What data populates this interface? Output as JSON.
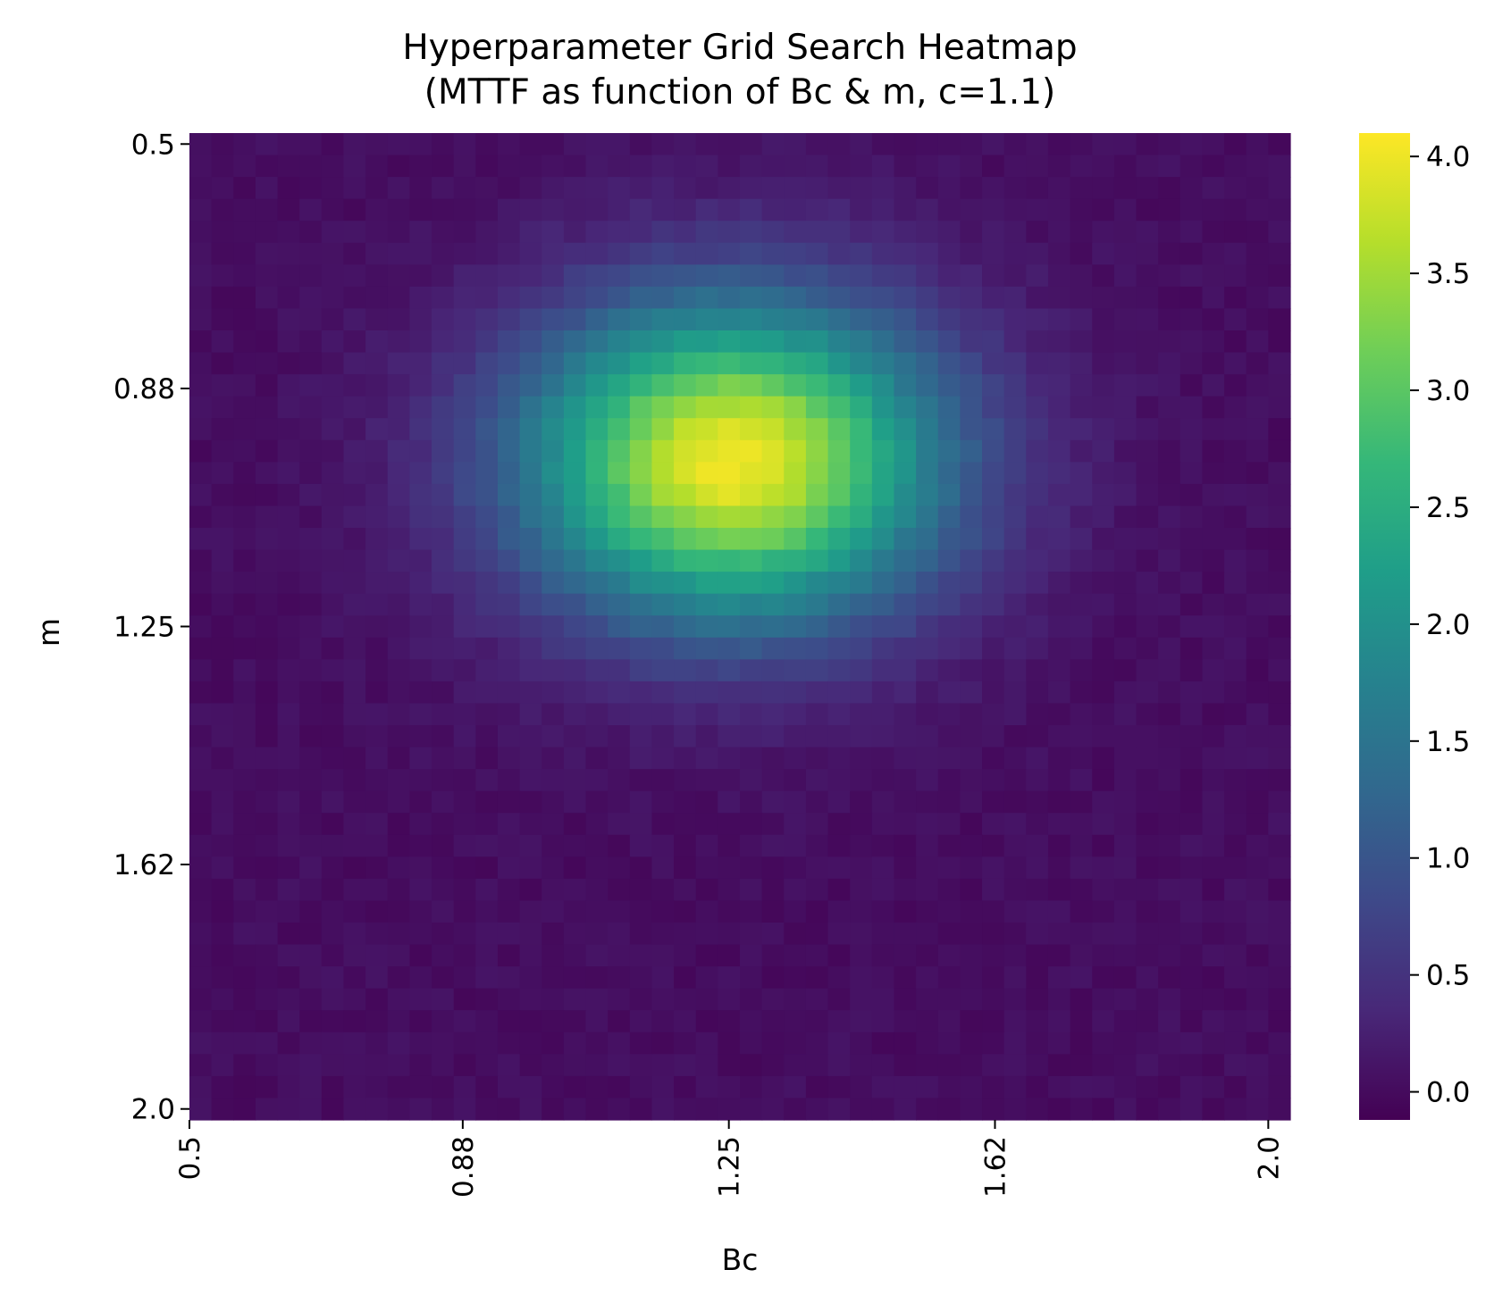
{
  "chart_data": {
    "type": "heatmap",
    "title_line1": "Hyperparameter Grid Search Heatmap",
    "title_line2": "(MTTF as function of Bc & m, c=1.1)",
    "xlabel": "Bc",
    "ylabel": "m",
    "x_range": [
      0.5,
      2.0
    ],
    "y_range": [
      0.5,
      2.0
    ],
    "x_tick_labels": [
      "0.5",
      "0.88",
      "1.25",
      "1.62",
      "2.0"
    ],
    "y_tick_labels": [
      "0.5",
      "0.88",
      "1.25",
      "1.62",
      "2.0"
    ],
    "y_axis_inverted": true,
    "grid_cols": 50,
    "grid_rows": 45,
    "colormap": "viridis",
    "color_range": [
      -0.12,
      4.1
    ],
    "colorbar_tick_labels": [
      "0.0",
      "0.5",
      "1.0",
      "1.5",
      "2.0",
      "2.5",
      "3.0",
      "3.5",
      "4.0"
    ],
    "colorbar_tick_values": [
      0.0,
      0.5,
      1.0,
      1.5,
      2.0,
      2.5,
      3.0,
      3.5,
      4.0
    ],
    "surface": {
      "form": "gaussian peak plus small noise",
      "peak_value": 4.0,
      "peak_Bc": 1.24,
      "peak_m": 1.0,
      "sigma_Bc": 0.2,
      "sigma_m": 0.17,
      "baseline": 0.03,
      "noise_amplitude": 0.08
    },
    "grid": false
  }
}
